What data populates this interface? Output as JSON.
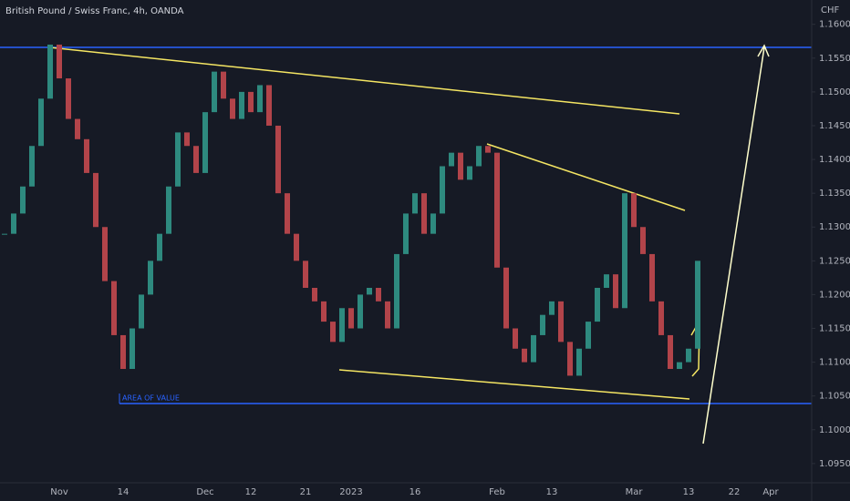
{
  "chart_data": {
    "type": "candlestick",
    "title": "British Pound / Swiss Franc, 4h, OANDA",
    "y_label": "CHF",
    "annotations": [
      "AREA OF VALUE"
    ],
    "categories": [
      null,
      null,
      null,
      null,
      null,
      null,
      "Nov",
      null,
      null,
      null,
      null,
      null,
      null,
      "14",
      null,
      null,
      null,
      null,
      null,
      null,
      null,
      null,
      "Dec",
      null,
      null,
      null,
      null,
      "12",
      null,
      null,
      null,
      null,
      null,
      "21",
      null,
      null,
      null,
      null,
      "2023",
      null,
      null,
      null,
      null,
      null,
      null,
      "16",
      null,
      null,
      null,
      null,
      null,
      null,
      null,
      null,
      "Feb",
      null,
      null,
      null,
      null,
      null,
      "13",
      null,
      null,
      null,
      null,
      null,
      null,
      null,
      null,
      "Mar",
      null,
      null,
      null,
      null,
      null,
      "13",
      null,
      null,
      null,
      null,
      "22",
      null,
      null,
      null,
      "Apr",
      null,
      null,
      null
    ],
    "values": [
      1.129,
      1.132,
      1.136,
      1.142,
      1.149,
      1.157,
      1.152,
      1.146,
      1.143,
      1.138,
      1.13,
      1.122,
      1.114,
      1.109,
      1.115,
      1.12,
      1.125,
      1.129,
      1.136,
      1.144,
      1.142,
      1.138,
      1.147,
      1.153,
      1.149,
      1.146,
      1.15,
      1.147,
      1.151,
      1.145,
      1.135,
      1.129,
      1.125,
      1.121,
      1.119,
      1.116,
      1.113,
      1.118,
      1.115,
      1.12,
      1.121,
      1.119,
      1.115,
      1.126,
      1.132,
      1.135,
      1.129,
      1.132,
      1.139,
      1.141,
      1.137,
      1.139,
      1.142,
      1.141,
      1.124,
      1.115,
      1.112,
      1.11,
      1.114,
      1.117,
      1.119,
      1.113,
      1.108,
      1.112,
      1.116,
      1.121,
      1.123,
      1.118,
      1.135,
      1.13,
      1.126,
      1.119,
      1.114,
      1.109,
      1.11,
      1.112,
      1.125,
      null,
      null,
      null,
      null,
      null,
      null,
      null,
      null,
      null,
      null,
      null
    ],
    "up_color": "#2e8a7f",
    "down_color": "#b2444a",
    "ylim": [
      1.0935,
      1.1636
    ],
    "yticks": [
      {
        "value": 1.16,
        "label": "1.16000"
      },
      {
        "value": 1.155,
        "label": "1.15500"
      },
      {
        "value": 1.15,
        "label": "1.15000"
      },
      {
        "value": 1.145,
        "label": "1.14500"
      },
      {
        "value": 1.14,
        "label": "1.14000"
      },
      {
        "value": 1.135,
        "label": "1.13500"
      },
      {
        "value": 1.13,
        "label": "1.13000"
      },
      {
        "value": 1.125,
        "label": "1.12500"
      },
      {
        "value": 1.12,
        "label": "1.12000"
      },
      {
        "value": 1.115,
        "label": "1.11500"
      },
      {
        "value": 1.11,
        "label": "1.11000"
      },
      {
        "value": 1.105,
        "label": "1.10500"
      },
      {
        "value": 1.1,
        "label": "1.10000"
      },
      {
        "value": 1.095,
        "label": "1.09500"
      }
    ],
    "grid": false
  }
}
